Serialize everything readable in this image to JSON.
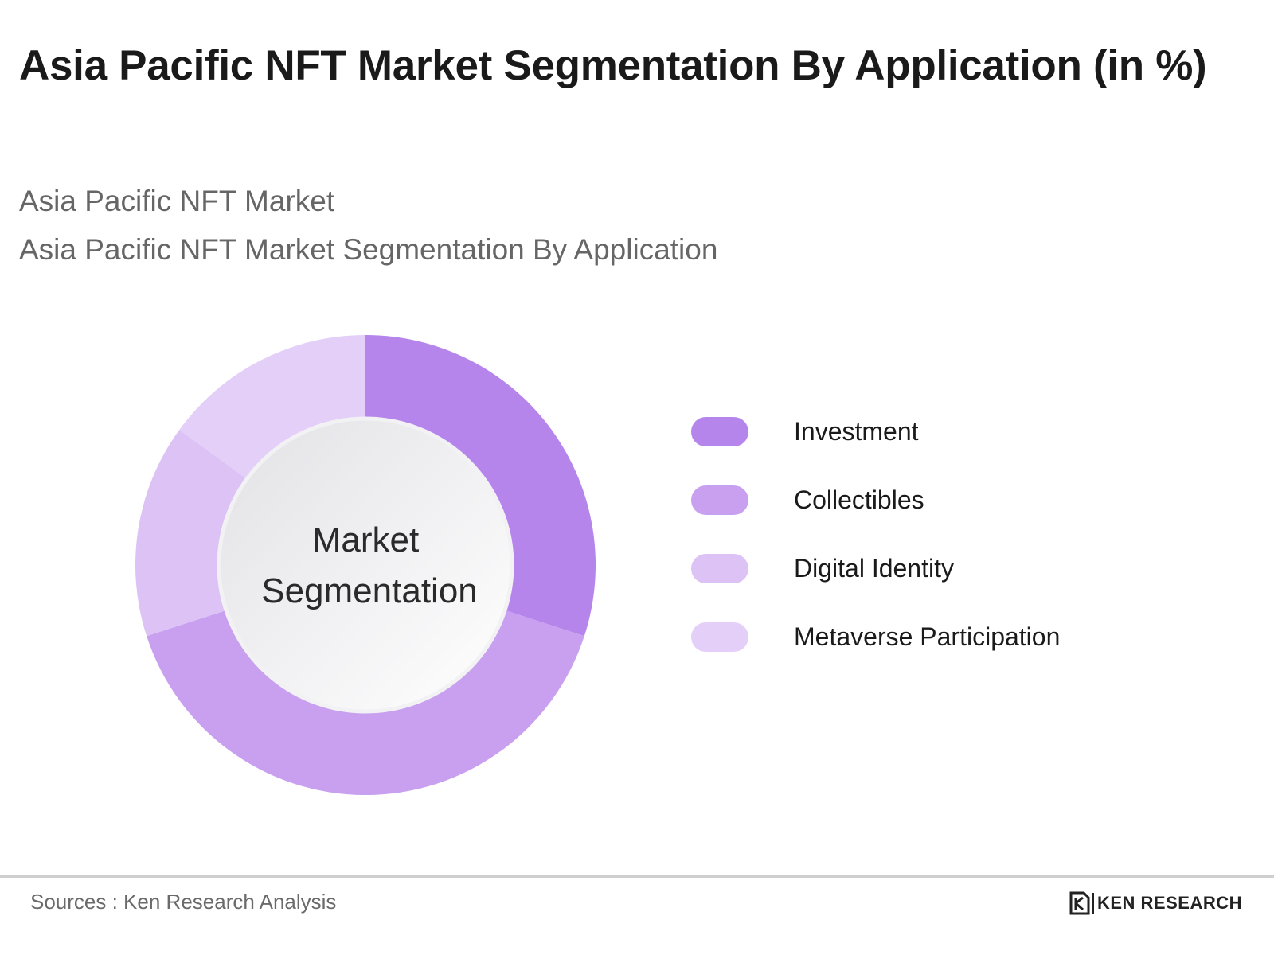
{
  "page": {
    "title": "Asia Pacific NFT Market Segmentation By Application (in %)",
    "subtitle_1": "Asia Pacific NFT Market",
    "subtitle_2": "Asia Pacific NFT Market Segmentation By Application",
    "center_label_line1": "Market",
    "center_label_line2": "Segmentation",
    "source": "Sources : Ken Research Analysis",
    "brand": "KEN RESEARCH"
  },
  "chart_data": {
    "type": "pie",
    "categories": [
      "Investment",
      "Collectibles",
      "Digital Identity",
      "Metaverse Participation"
    ],
    "values": [
      30,
      40,
      15,
      15
    ],
    "unit": "%",
    "colors": [
      "#b685ec",
      "#c8a0ef",
      "#dcc2f5",
      "#e4cff8"
    ],
    "legend_position": "right"
  }
}
